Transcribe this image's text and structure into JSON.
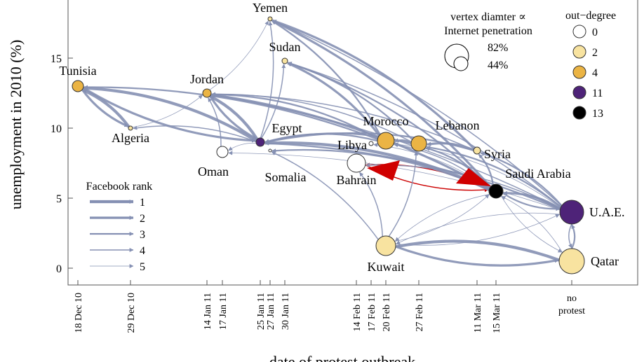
{
  "chart_data": {
    "type": "network-scatter",
    "ylabel": "unemployment in 2010 (%)",
    "xlabel": "date of protest outbreak",
    "y_ticks": [
      "0",
      "5",
      "10",
      "15"
    ],
    "ylim": [
      -1,
      20
    ],
    "x_ticks": [
      {
        "label": "18 Dec 10",
        "day": 0
      },
      {
        "label": "29 Dec 10",
        "day": 11
      },
      {
        "label": "14 Jan 11",
        "day": 27
      },
      {
        "label": "17 Jan 11",
        "day": 30
      },
      {
        "label": "25 Jan 11",
        "day": 38
      },
      {
        "label": "27 Jan 11",
        "day": 40
      },
      {
        "label": "30 Jan 11",
        "day": 43
      },
      {
        "label": "14 Feb 11",
        "day": 58
      },
      {
        "label": "17 Feb 11",
        "day": 61
      },
      {
        "label": "20 Feb 11",
        "day": 64
      },
      {
        "label": "27 Feb 11",
        "day": 71
      },
      {
        "label": "11 Mar 11",
        "day": 83
      },
      {
        "label": "15 Mar 11",
        "day": 87
      },
      {
        "label": "no protest",
        "day": 103
      }
    ],
    "nodes": [
      {
        "name": "Tunisia",
        "day": 0,
        "unemployment": 13.0,
        "out_degree": 4
      },
      {
        "name": "Algeria",
        "day": 11,
        "unemployment": 10.0,
        "out_degree": 2
      },
      {
        "name": "Jordan",
        "day": 27,
        "unemployment": 12.5,
        "out_degree": 4
      },
      {
        "name": "Oman",
        "day": 30,
        "unemployment": 8.3,
        "out_degree": 0
      },
      {
        "name": "Egypt",
        "day": 38,
        "unemployment": 9.0,
        "out_degree": 11
      },
      {
        "name": "Somalia",
        "day": 40,
        "unemployment": 8.4,
        "out_degree": 0
      },
      {
        "name": "Yemen",
        "day": 40,
        "unemployment": 17.8,
        "out_degree": 2
      },
      {
        "name": "Sudan",
        "day": 43,
        "unemployment": 14.8,
        "out_degree": 2
      },
      {
        "name": "Bahrain",
        "day": 58,
        "unemployment": 7.5,
        "out_degree": 0
      },
      {
        "name": "Libya",
        "day": 61,
        "unemployment": 8.9,
        "out_degree": 0
      },
      {
        "name": "Morocco",
        "day": 64,
        "unemployment": 9.1,
        "out_degree": 4
      },
      {
        "name": "Kuwait",
        "day": 64,
        "unemployment": 1.6,
        "out_degree": 2
      },
      {
        "name": "Lebanon",
        "day": 71,
        "unemployment": 8.9,
        "out_degree": 4
      },
      {
        "name": "Syria",
        "day": 83,
        "unemployment": 8.4,
        "out_degree": 2
      },
      {
        "name": "Saudi Arabia",
        "day": 87,
        "unemployment": 5.5,
        "out_degree": 13
      },
      {
        "name": "U.A.E.",
        "day": 103,
        "unemployment": 4.0,
        "out_degree": 11
      },
      {
        "name": "Qatar",
        "day": 103,
        "unemployment": 0.5,
        "out_degree": 2
      }
    ],
    "edges": [
      {
        "from": "Egypt",
        "to": "Tunisia",
        "rank": 1
      },
      {
        "from": "Egypt",
        "to": "Jordan",
        "rank": 1
      },
      {
        "from": "Egypt",
        "to": "Yemen",
        "rank": 4
      },
      {
        "from": "Egypt",
        "to": "Sudan",
        "rank": 4
      },
      {
        "from": "Egypt",
        "to": "Oman",
        "rank": 5
      },
      {
        "from": "Egypt",
        "to": "Algeria",
        "rank": 4
      },
      {
        "from": "Algeria",
        "to": "Tunisia",
        "rank": 1
      },
      {
        "from": "Tunisia",
        "to": "Algeria",
        "rank": 2
      },
      {
        "from": "Algeria",
        "to": "Jordan",
        "rank": 5
      },
      {
        "from": "Jordan",
        "to": "Egypt",
        "rank": 2
      },
      {
        "from": "Jordan",
        "to": "Yemen",
        "rank": 5
      },
      {
        "from": "Tunisia",
        "to": "Egypt",
        "rank": 2
      },
      {
        "from": "Morocco",
        "to": "Egypt",
        "rank": 3
      },
      {
        "from": "Morocco",
        "to": "Yemen",
        "rank": 3
      },
      {
        "from": "Morocco",
        "to": "Sudan",
        "rank": 2
      },
      {
        "from": "Morocco",
        "to": "Tunisia",
        "rank": 3
      },
      {
        "from": "Morocco",
        "to": "Jordan",
        "rank": 3
      },
      {
        "from": "Lebanon",
        "to": "Morocco",
        "rank": 3
      },
      {
        "from": "Lebanon",
        "to": "Sudan",
        "rank": 3
      },
      {
        "from": "Lebanon",
        "to": "Egypt",
        "rank": 3
      },
      {
        "from": "Lebanon",
        "to": "Jordan",
        "rank": 4
      },
      {
        "from": "Syria",
        "to": "Lebanon",
        "rank": 2
      },
      {
        "from": "Syria",
        "to": "Egypt",
        "rank": 3
      },
      {
        "from": "Syria",
        "to": "Jordan",
        "rank": 4
      },
      {
        "from": "Syria",
        "to": "Yemen",
        "rank": 2
      },
      {
        "from": "Saudi Arabia",
        "to": "Bahrain",
        "rank": 1,
        "highlight": true
      },
      {
        "from": "Bahrain",
        "to": "Saudi Arabia",
        "rank": 1,
        "highlight": true
      },
      {
        "from": "Saudi Arabia",
        "to": "Egypt",
        "rank": 1
      },
      {
        "from": "Saudi Arabia",
        "to": "Jordan",
        "rank": 2
      },
      {
        "from": "Saudi Arabia",
        "to": "Yemen",
        "rank": 2
      },
      {
        "from": "Saudi Arabia",
        "to": "Sudan",
        "rank": 3
      },
      {
        "from": "Saudi Arabia",
        "to": "Lebanon",
        "rank": 3
      },
      {
        "from": "Saudi Arabia",
        "to": "Syria",
        "rank": 3
      },
      {
        "from": "Saudi Arabia",
        "to": "Morocco",
        "rank": 4
      },
      {
        "from": "Saudi Arabia",
        "to": "Libya",
        "rank": 5
      },
      {
        "from": "Saudi Arabia",
        "to": "Kuwait",
        "rank": 5
      },
      {
        "from": "Saudi Arabia",
        "to": "Somalia",
        "rank": 3
      },
      {
        "from": "Saudi Arabia",
        "to": "U.A.E.",
        "rank": 3
      },
      {
        "from": "Saudi Arabia",
        "to": "Qatar",
        "rank": 5
      },
      {
        "from": "U.A.E.",
        "to": "Saudi Arabia",
        "rank": 2
      },
      {
        "from": "U.A.E.",
        "to": "Egypt",
        "rank": 3
      },
      {
        "from": "U.A.E.",
        "to": "Jordan",
        "rank": 4
      },
      {
        "from": "U.A.E.",
        "to": "Syria",
        "rank": 3
      },
      {
        "from": "U.A.E.",
        "to": "Lebanon",
        "rank": 3
      },
      {
        "from": "U.A.E.",
        "to": "Bahrain",
        "rank": 4
      },
      {
        "from": "U.A.E.",
        "to": "Kuwait",
        "rank": 5
      },
      {
        "from": "U.A.E.",
        "to": "Qatar",
        "rank": 4
      },
      {
        "from": "U.A.E.",
        "to": "Sudan",
        "rank": 4
      },
      {
        "from": "U.A.E.",
        "to": "Yemen",
        "rank": 4
      },
      {
        "from": "U.A.E.",
        "to": "Morocco",
        "rank": 5
      },
      {
        "from": "U.A.E.",
        "to": "Oman",
        "rank": 5
      },
      {
        "from": "Qatar",
        "to": "Kuwait",
        "rank": 1
      },
      {
        "from": "Kuwait",
        "to": "Qatar",
        "rank": 2
      },
      {
        "from": "Qatar",
        "to": "U.A.E.",
        "rank": 3
      },
      {
        "from": "Qatar",
        "to": "Saudi Arabia",
        "rank": 5
      },
      {
        "from": "Kuwait",
        "to": "Bahrain",
        "rank": 4
      },
      {
        "from": "Kuwait",
        "to": "Lebanon",
        "rank": 4
      },
      {
        "from": "Kuwait",
        "to": "U.A.E.",
        "rank": 5
      },
      {
        "from": "Kuwait",
        "to": "Saudi Arabia",
        "rank": 5
      },
      {
        "from": "Kuwait",
        "to": "Somalia",
        "rank": 4
      },
      {
        "from": "Oman",
        "to": "Jordan",
        "rank": 4
      }
    ],
    "legend_size": {
      "title_line1": "vertex diamter ∝",
      "title_line2": "Internet penetration",
      "large_label": "82%",
      "small_label": "44%"
    },
    "legend_degree": {
      "title": "out−degree",
      "items": [
        {
          "label": "0",
          "color": "#ffffff"
        },
        {
          "label": "2",
          "color": "#f8e3a0"
        },
        {
          "label": "4",
          "color": "#ebb444"
        },
        {
          "label": "11",
          "color": "#4e2378"
        },
        {
          "label": "13",
          "color": "#000000"
        }
      ]
    },
    "legend_rank": {
      "title": "Facebook rank",
      "items": [
        "1",
        "2",
        "3",
        "4",
        "5"
      ]
    },
    "colors": {
      "edge": "#8590b3",
      "highlight_edge": "#cc0000",
      "node_stroke": "#333333"
    }
  }
}
